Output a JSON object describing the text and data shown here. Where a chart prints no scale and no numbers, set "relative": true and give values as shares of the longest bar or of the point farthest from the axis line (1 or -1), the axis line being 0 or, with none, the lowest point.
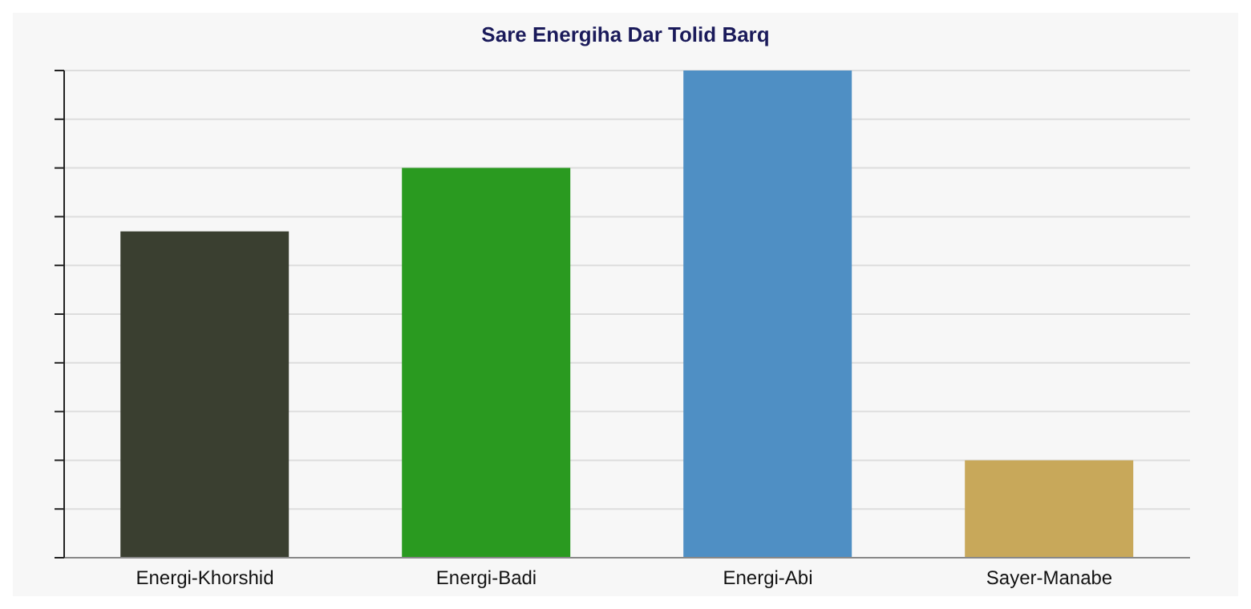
{
  "chart_data": {
    "type": "bar",
    "title": "Sare Energiha Dar Tolid Barq",
    "relative": true,
    "grid": "y",
    "categories": [
      "Energi-Khorshid",
      "Energi-Badi",
      "Energi-Abi",
      "Sayer-Manabe"
    ],
    "values": [
      0.67,
      0.8,
      1,
      0.2
    ],
    "colors": [
      "#3a3f30",
      "#2a9a20",
      "#4f8fc4",
      "#c8a85a"
    ]
  }
}
